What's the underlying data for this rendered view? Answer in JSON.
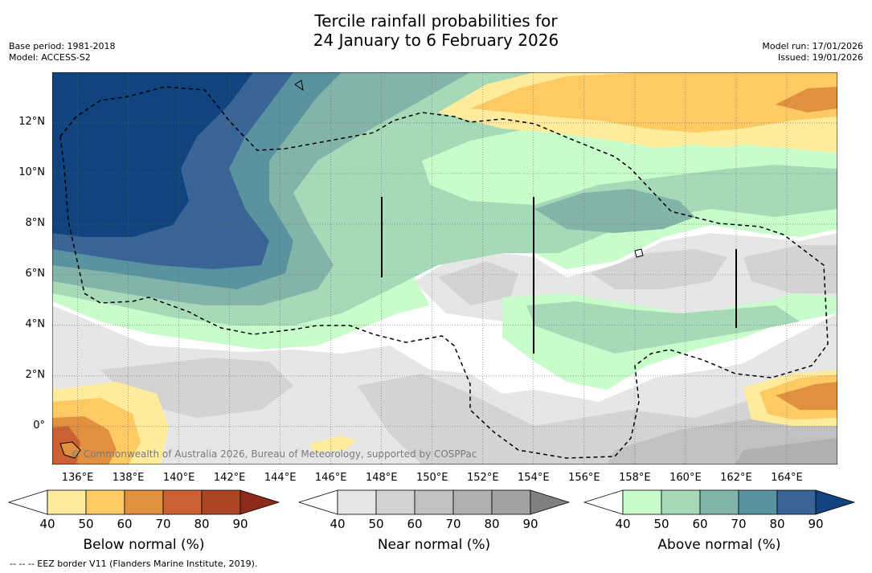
{
  "title": {
    "line1": "Tercile rainfall probabilities for",
    "line2": "24 January to 6 February 2026"
  },
  "meta_left": {
    "base_period": "Base period: 1981-2018",
    "model": "Model: ACCESS-S2"
  },
  "meta_right": {
    "model_run": "Model run: 17/01/2026",
    "issued": "Issued: 19/01/2026"
  },
  "map": {
    "lon_range": [
      135,
      166
    ],
    "lat_range": [
      -1.5,
      14
    ],
    "x_ticks": [
      "136°E",
      "138°E",
      "140°E",
      "142°E",
      "144°E",
      "146°E",
      "148°E",
      "150°E",
      "152°E",
      "154°E",
      "156°E",
      "158°E",
      "160°E",
      "162°E",
      "164°E"
    ],
    "x_tick_values": [
      136,
      138,
      140,
      142,
      144,
      146,
      148,
      150,
      152,
      154,
      156,
      158,
      160,
      162,
      164
    ],
    "y_ticks": [
      "12°N",
      "10°N",
      "8°N",
      "6°N",
      "4°N",
      "2°N",
      "0°"
    ],
    "y_tick_values": [
      12,
      10,
      8,
      6,
      4,
      2,
      0
    ],
    "copyright": "© Commonwealth of Australia 2026, Bureau of Meteorology, supported by COSPPac"
  },
  "colorbars": [
    {
      "label": "Below normal (%)",
      "ticks": [
        "40",
        "50",
        "60",
        "70",
        "80",
        "90"
      ],
      "colors": [
        "#ffffff",
        "#feeb9c",
        "#fdca63",
        "#e0903f",
        "#cb6132",
        "#ac4524",
        "#8c2b1b"
      ]
    },
    {
      "label": "Near normal (%)",
      "ticks": [
        "40",
        "50",
        "60",
        "70",
        "80",
        "90"
      ],
      "colors": [
        "#ffffff",
        "#e6e6e6",
        "#d3d3d3",
        "#c1c1c1",
        "#b0b0b0",
        "#a1a1a1",
        "#808080"
      ]
    },
    {
      "label": "Above normal (%)",
      "ticks": [
        "40",
        "50",
        "60",
        "70",
        "80",
        "90"
      ],
      "colors": [
        "#ffffff",
        "#c8fcca",
        "#a6d9b8",
        "#82b4aa",
        "#5a93a0",
        "#3a6496",
        "#11447e"
      ]
    }
  ],
  "footnote": "--  --  -- EEZ border V11 (Flanders Marine Institute, 2019)."
}
